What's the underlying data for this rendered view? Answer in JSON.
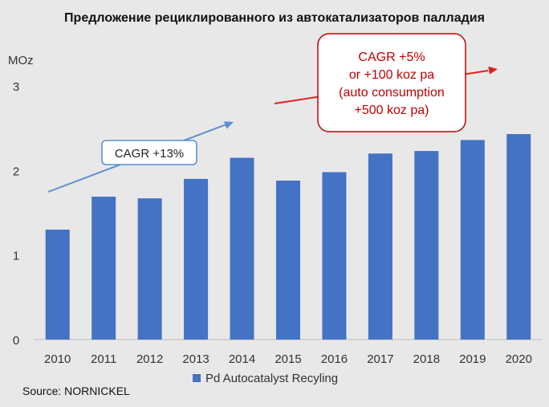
{
  "chart_data": {
    "type": "bar",
    "title": "Предложение рециклированного из автокатализаторов палладия",
    "ylabel": "MOz",
    "xlabel": "",
    "ylim": [
      0,
      3
    ],
    "yticks": [
      0,
      1,
      2,
      3
    ],
    "grid": false,
    "categories": [
      "2010",
      "2011",
      "2012",
      "2013",
      "2014",
      "2015",
      "2016",
      "2017",
      "2018",
      "2019",
      "2020"
    ],
    "series": [
      {
        "name": "Pd Autocatalyst Recyling",
        "color": "#4472c4",
        "values": [
          1.3,
          1.69,
          1.67,
          1.9,
          2.15,
          1.88,
          1.98,
          2.2,
          2.23,
          2.36,
          2.43
        ]
      }
    ],
    "legend_position": "bottom",
    "annotations": [
      {
        "id": "cagr-13",
        "lines": [
          "CAGR +13%"
        ],
        "arrow_color": "#5b8fd0",
        "text_color": "#222222",
        "border_color": "#5b8fd0"
      },
      {
        "id": "cagr-5",
        "lines": [
          "CAGR +5%",
          "or +100 koz pa",
          "(auto consumption",
          "+500 koz pa)"
        ],
        "arrow_color": "#e02020",
        "text_color": "#c00000",
        "border_color": "#c00000"
      }
    ]
  },
  "source": "Source: NORNICKEL"
}
